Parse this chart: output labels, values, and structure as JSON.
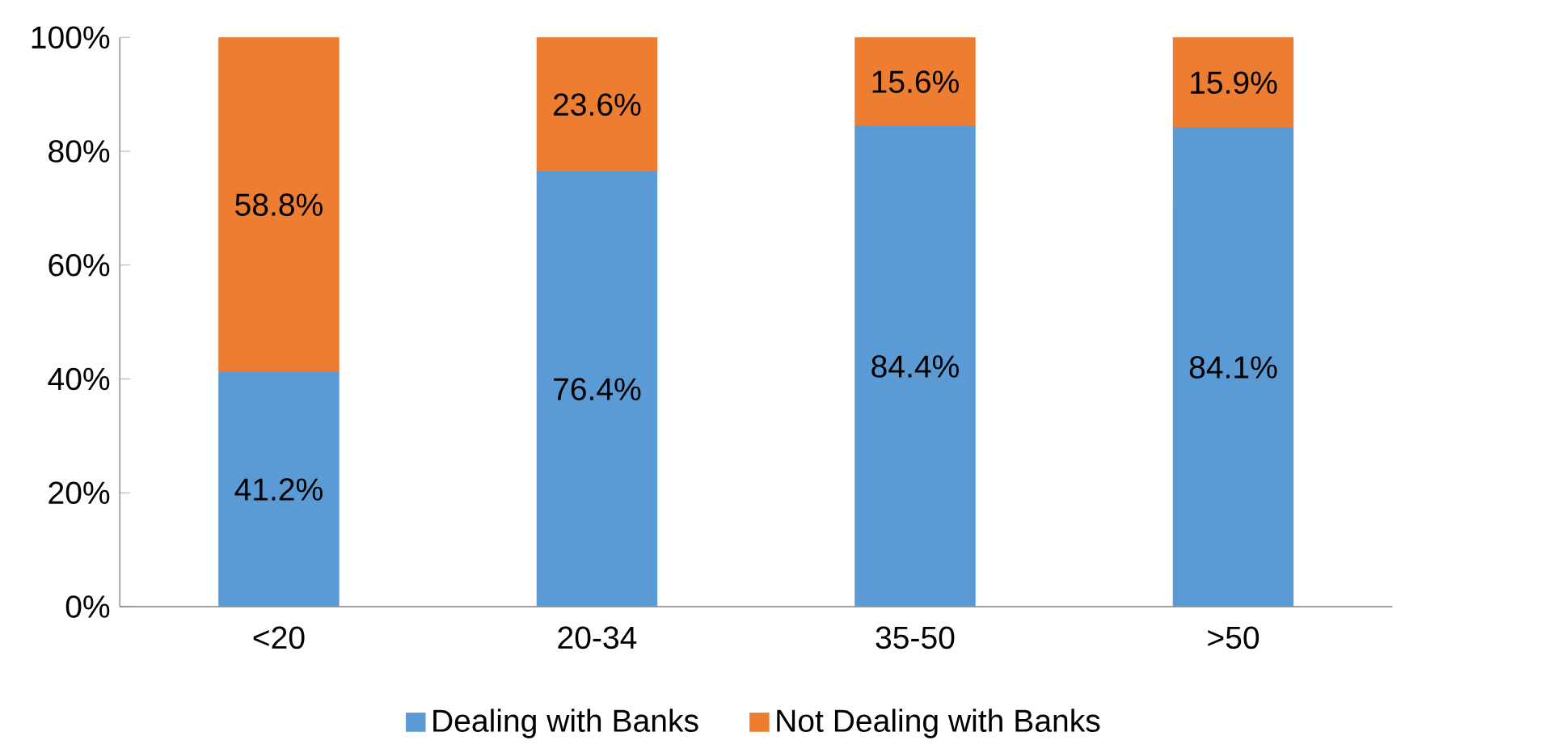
{
  "chart_data": {
    "type": "bar",
    "stacked": true,
    "categories": [
      "<20",
      "20-34",
      "35-50",
      ">50"
    ],
    "series": [
      {
        "name": "Dealing with Banks",
        "color": "#5b9bd5",
        "values": [
          41.2,
          76.4,
          84.4,
          84.1
        ],
        "value_labels": [
          "41.2%",
          "76.4%",
          "84.4%",
          "84.1%"
        ]
      },
      {
        "name": "Not Dealing with Banks",
        "color": "#ed7d31",
        "values": [
          58.8,
          23.6,
          15.6,
          15.9
        ],
        "value_labels": [
          "58.8%",
          "23.6%",
          "15.6%",
          "15.9%"
        ]
      }
    ],
    "ylim": [
      0,
      100
    ],
    "yticks": [
      {
        "value": 0,
        "label": "0%"
      },
      {
        "value": 20,
        "label": "20%"
      },
      {
        "value": 40,
        "label": "40%"
      },
      {
        "value": 60,
        "label": "60%"
      },
      {
        "value": 80,
        "label": "80%"
      },
      {
        "value": 100,
        "label": "100%"
      }
    ],
    "legend": "bottom"
  }
}
